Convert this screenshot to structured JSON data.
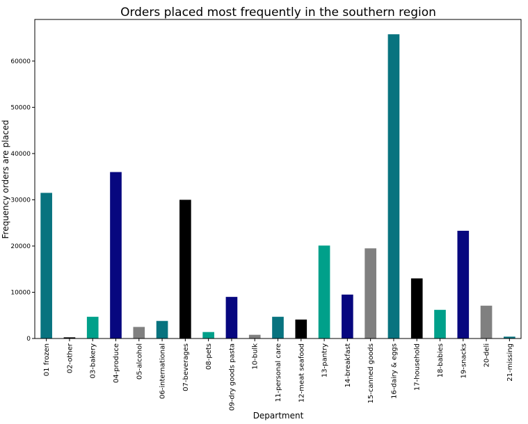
{
  "chart_data": {
    "type": "bar",
    "title": "Orders placed most frequently in the southern region",
    "xlabel": "Department",
    "ylabel": "Frequency orders are placed",
    "ylim": [
      0,
      69000
    ],
    "yticks": [
      0,
      10000,
      20000,
      30000,
      40000,
      50000,
      60000
    ],
    "grid": false,
    "categories": [
      "01 frozen",
      "02-other",
      "03-bakery",
      "04-produce",
      "05-alcohol",
      "06-international",
      "07-beverages",
      "08-pets",
      "09-dry goods pasta",
      "10-bulk",
      "11-personal care",
      "12-meat seafood",
      "13-pantry",
      "14-breakfast",
      "15-canned goods",
      "16-dairy & eggs",
      "17-household",
      "18-babies",
      "19-snacks",
      "20-deli",
      "21-missing"
    ],
    "values": [
      31500,
      250,
      4700,
      36000,
      2500,
      3800,
      30000,
      1400,
      9000,
      800,
      4700,
      4100,
      20100,
      9500,
      19500,
      65800,
      13000,
      6200,
      23300,
      7100,
      400
    ],
    "colors": [
      "#08737f",
      "#000000",
      "#00a08a",
      "#07077f",
      "#808080",
      "#08737f",
      "#000000",
      "#00a08a",
      "#07077f",
      "#808080",
      "#08737f",
      "#000000",
      "#00a08a",
      "#07077f",
      "#808080",
      "#08737f",
      "#000000",
      "#00a08a",
      "#07077f",
      "#808080",
      "#08737f"
    ]
  }
}
